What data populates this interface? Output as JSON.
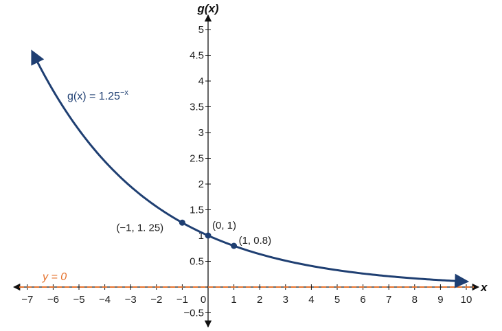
{
  "chart_data": {
    "type": "line",
    "title": "",
    "xlabel": "x",
    "ylabel": "g(x)",
    "xlim": [
      -7,
      10
    ],
    "ylim": [
      -0.5,
      5
    ],
    "grid": false,
    "x_ticks": [
      "−7",
      "−6",
      "−5",
      "−4",
      "−3",
      "−2",
      "−1",
      "0",
      "1",
      "2",
      "3",
      "4",
      "5",
      "6",
      "7",
      "8",
      "9",
      "10"
    ],
    "y_ticks": [
      "−0.5",
      "0.5",
      "1",
      "1.5",
      "2",
      "2.5",
      "3",
      "3.5",
      "4",
      "4.5",
      "5"
    ],
    "series": [
      {
        "function": "1.25^(-x)",
        "label": "g(x) = 1.25",
        "label_exponent": "−x",
        "x_range": [
          -6.8,
          10
        ],
        "color": "#1f3f72"
      },
      {
        "function": "0",
        "label": "y = 0",
        "style": "dashed",
        "color": "#e5712b"
      }
    ],
    "points": [
      {
        "x": -1,
        "y": 1.25,
        "label": "(−1, 1. 25)"
      },
      {
        "x": 0,
        "y": 1,
        "label": "(0, 1)"
      },
      {
        "x": 1,
        "y": 0.8,
        "label": "(1, 0.8)"
      }
    ],
    "colors": {
      "curve": "#1f3f72",
      "asymptote": "#e5712b",
      "axes": "#111111"
    }
  }
}
